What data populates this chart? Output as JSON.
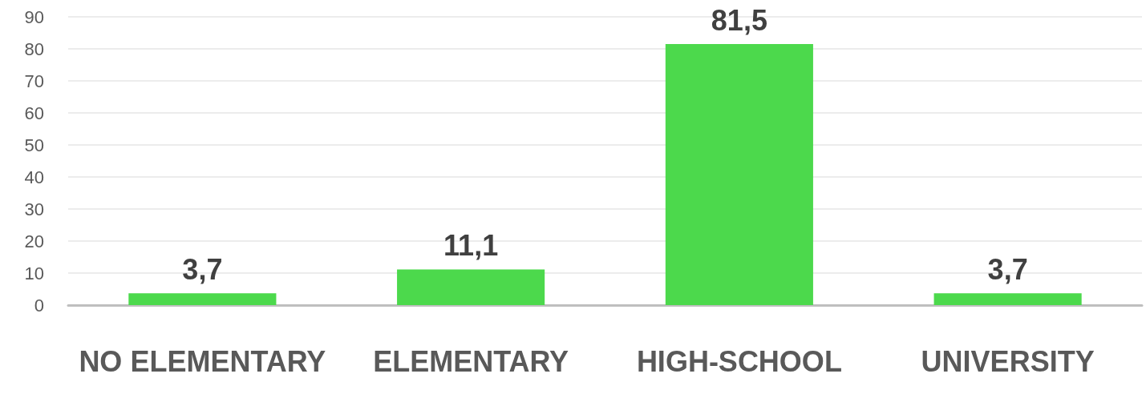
{
  "chart_data": {
    "type": "bar",
    "categories": [
      "NO ELEMENTARY",
      "ELEMENTARY",
      "HIGH-SCHOOL",
      "UNIVERSITY"
    ],
    "values": [
      3.7,
      11.1,
      81.5,
      3.7
    ],
    "value_labels": [
      "3,7",
      "11,1",
      "81,5",
      "3,7"
    ],
    "color": "#4cd94c",
    "ylim": [
      0,
      90
    ],
    "yticks": [
      0,
      10,
      20,
      30,
      40,
      50,
      60,
      70,
      80,
      90
    ],
    "grid": "y"
  }
}
